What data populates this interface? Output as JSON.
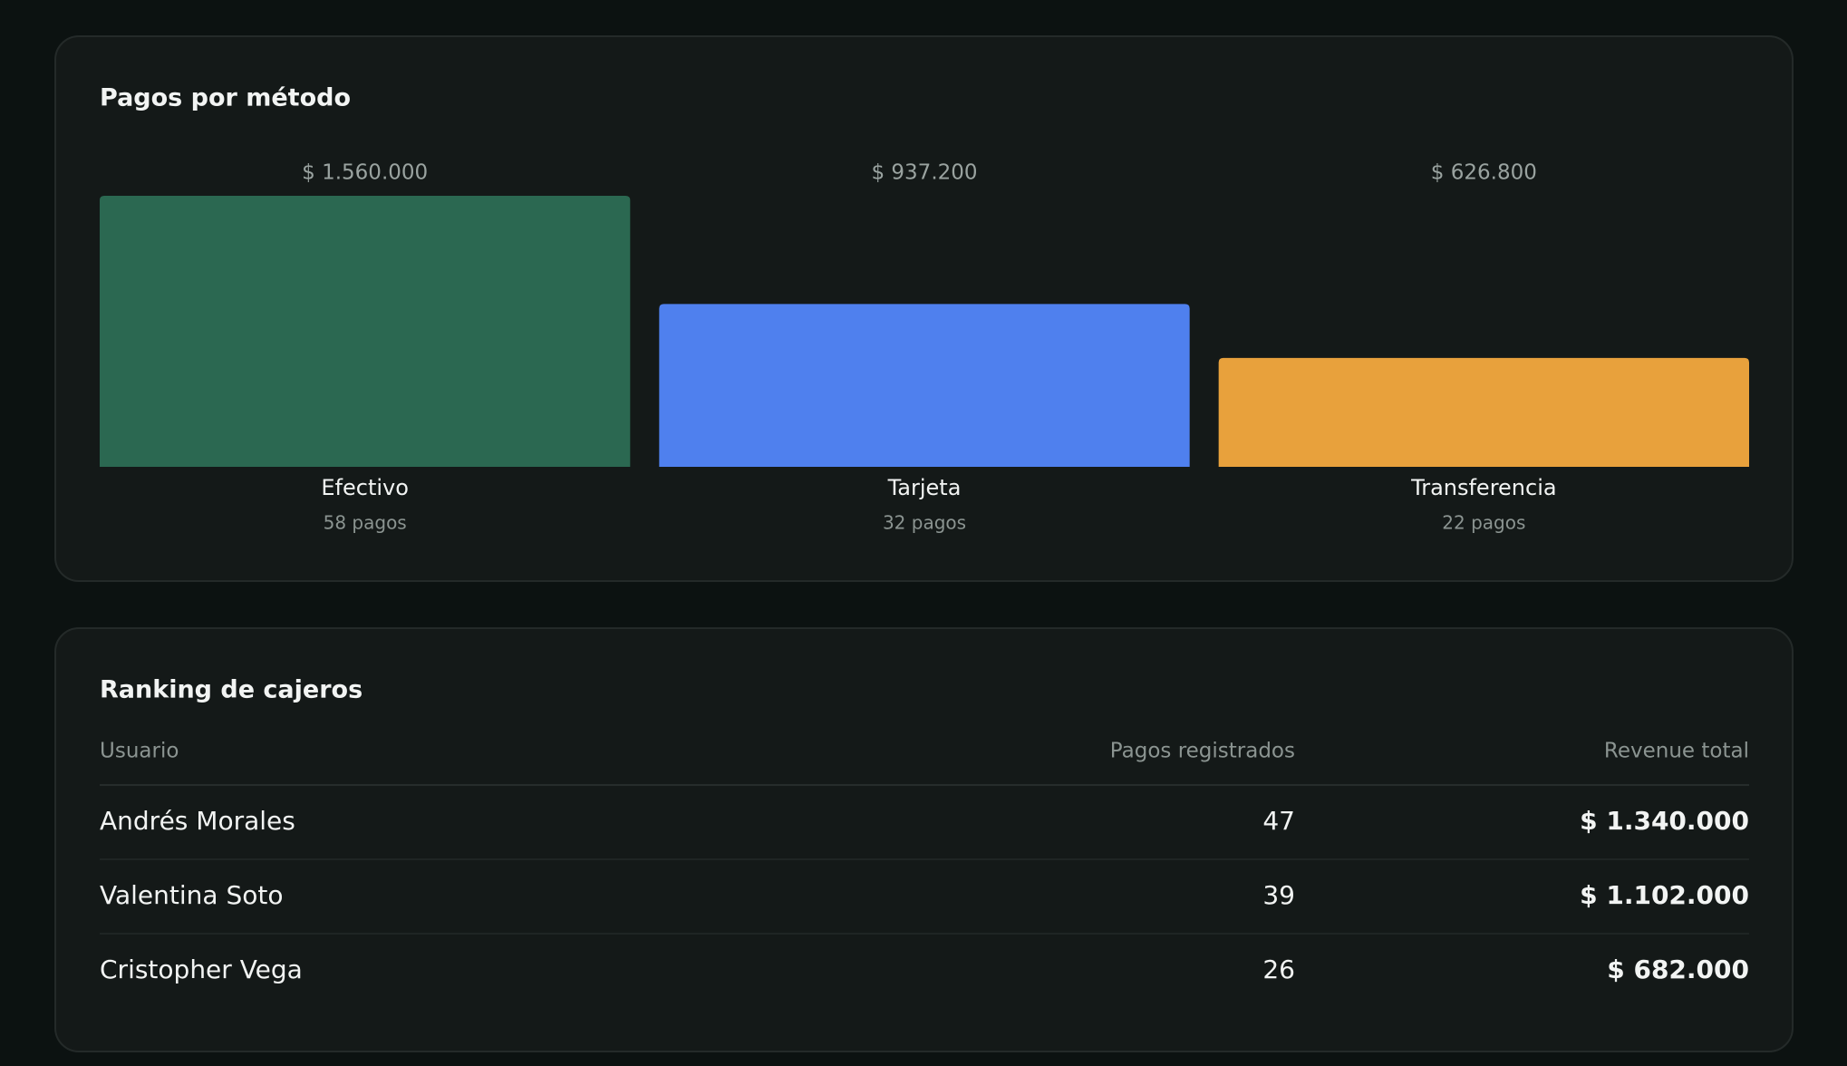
{
  "chart_data": {
    "type": "bar",
    "title": "Pagos por método",
    "categories": [
      "Efectivo",
      "Tarjeta",
      "Transferencia"
    ],
    "values": [
      1560000,
      937200,
      626800
    ],
    "value_labels": [
      "$ 1.560.000",
      "$ 937.200",
      "$ 626.800"
    ],
    "sublabels": [
      "58 pagos",
      "32 pagos",
      "22 pagos"
    ],
    "colors": [
      "#2b6851",
      "#4f80ee",
      "#e8a13c"
    ]
  },
  "table": {
    "title": "Ranking de cajeros",
    "headers": [
      "Usuario",
      "Pagos registrados",
      "Revenue total"
    ],
    "rows": [
      [
        "Andrés Morales",
        47,
        "$ 1.340.000"
      ],
      [
        "Valentina Soto",
        39,
        "$ 1.102.000"
      ],
      [
        "Cristopher Vega",
        26,
        "$ 682.000"
      ]
    ]
  }
}
